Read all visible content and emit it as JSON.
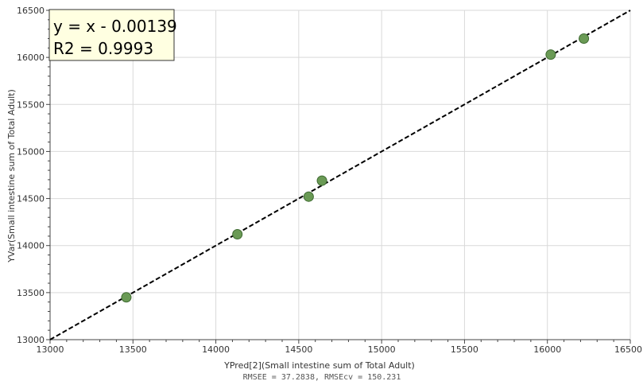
{
  "chart_data": {
    "type": "scatter",
    "title": "",
    "xlabel": "YPred[2](Small intestine sum of Total Adult)",
    "ylabel": "YVar(Small intestine sum of Total Adult)",
    "footer": "RMSEE = 37.2838, RMSEcv = 150.231",
    "xlim": [
      13000,
      16500
    ],
    "ylim": [
      13000,
      16500
    ],
    "x_ticks": [
      13000,
      13500,
      14000,
      14500,
      15000,
      15500,
      16000,
      16500
    ],
    "y_ticks": [
      13000,
      13500,
      14000,
      14500,
      15000,
      15500,
      16000,
      16500
    ],
    "grid": true,
    "points": [
      {
        "x": 13460,
        "y": 13450
      },
      {
        "x": 14130,
        "y": 14120
      },
      {
        "x": 14560,
        "y": 14520
      },
      {
        "x": 14640,
        "y": 14690
      },
      {
        "x": 16020,
        "y": 16030
      },
      {
        "x": 16220,
        "y": 16200
      }
    ],
    "fit_line": {
      "slope": 1,
      "intercept": -0.00139,
      "style": "dashed"
    },
    "annotation": {
      "line1": "y = x - 0.00139",
      "line2": "R2 = 0.9993"
    },
    "colors": {
      "point_fill": "#6a9a55",
      "point_stroke": "#3f6b32",
      "fit_line": "#000000",
      "grid": "#d9d9d9",
      "annotation_bg": "#ffffe1"
    }
  }
}
